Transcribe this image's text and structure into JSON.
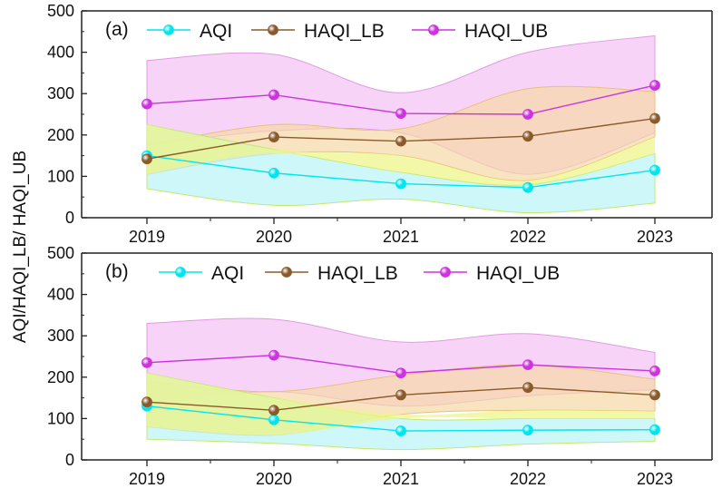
{
  "colors": {
    "aqi": "#00e5ee",
    "haqi_lb": "#8b5a2b",
    "haqi_ub": "#cc33dd",
    "aqi_band": "#b8f4f6",
    "lb_band": "#f6d9a6",
    "ub_band": "#f6cdf6",
    "yellow_overlap": "#eef58a",
    "axis": "#222222"
  },
  "y_axis_title": "AQI/HAQI_LB/ HAQI_UB",
  "chart_data": [
    {
      "panel_label": "(a)",
      "type": "line",
      "categories": [
        "2019",
        "2020",
        "2021",
        "2022",
        "2023"
      ],
      "ylim": [
        0,
        500
      ],
      "yticks": [
        "0",
        "100",
        "200",
        "300",
        "400",
        "500"
      ],
      "legend": [
        "AQI",
        "HAQI_LB",
        "HAQI_UB"
      ],
      "series": [
        {
          "name": "AQI",
          "key": "aqi",
          "values": [
            150,
            108,
            82,
            73,
            115
          ],
          "band_low": [
            70,
            30,
            45,
            12,
            35
          ],
          "band_high": [
            225,
            165,
            110,
            80,
            155
          ]
        },
        {
          "name": "HAQI_LB",
          "key": "haqi_lb",
          "values": [
            142,
            195,
            185,
            197,
            240
          ],
          "band_low": [
            105,
            155,
            150,
            90,
            195
          ],
          "band_high": [
            175,
            225,
            215,
            312,
            305
          ]
        },
        {
          "name": "HAQI_UB",
          "key": "haqi_ub",
          "values": [
            275,
            297,
            252,
            250,
            320
          ],
          "band_low": [
            175,
            210,
            205,
            105,
            205
          ],
          "band_high": [
            380,
            395,
            302,
            400,
            440
          ]
        }
      ]
    },
    {
      "panel_label": "(b)",
      "type": "line",
      "categories": [
        "2019",
        "2020",
        "2021",
        "2022",
        "2023"
      ],
      "ylim": [
        0,
        500
      ],
      "yticks": [
        "0",
        "100",
        "200",
        "300",
        "400",
        "500"
      ],
      "legend": [
        "AQI",
        "HAQI_LB",
        "HAQI_UB"
      ],
      "series": [
        {
          "name": "AQI",
          "key": "aqi",
          "values": [
            130,
            97,
            70,
            72,
            73
          ],
          "band_low": [
            50,
            40,
            25,
            38,
            45
          ],
          "band_high": [
            210,
            150,
            100,
            100,
            100
          ]
        },
        {
          "name": "HAQI_LB",
          "key": "haqi_lb",
          "values": [
            140,
            120,
            157,
            175,
            157
          ],
          "band_low": [
            80,
            60,
            110,
            120,
            118
          ],
          "band_high": [
            190,
            165,
            205,
            230,
            195
          ]
        },
        {
          "name": "HAQI_UB",
          "key": "haqi_ub",
          "values": [
            235,
            253,
            210,
            230,
            215
          ],
          "band_low": [
            135,
            165,
            130,
            155,
            170
          ],
          "band_high": [
            330,
            340,
            285,
            305,
            260
          ]
        }
      ]
    }
  ]
}
